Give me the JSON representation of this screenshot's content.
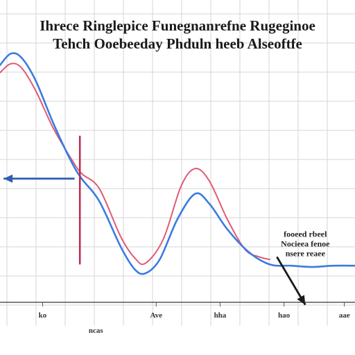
{
  "chart_data": {
    "type": "line",
    "title_lines": [
      "Ihrece Ringlepice Funegnanrefne Rugeginoe",
      "Tehch Ooebeeday Phduln heeb Alseoftfe"
    ],
    "xlim": [
      0,
      10
    ],
    "ylim": [
      0,
      10
    ],
    "grid": true,
    "legend": "none",
    "x_tick_labels": [
      {
        "x": 1.2,
        "label": "ko"
      },
      {
        "x": 4.4,
        "label": "Ave"
      },
      {
        "x": 6.2,
        "label": "hha"
      },
      {
        "x": 8.0,
        "label": "hao"
      },
      {
        "x": 9.7,
        "label": "aae"
      }
    ],
    "x_sublabel": {
      "x": 2.7,
      "label": "ncas"
    },
    "series": [
      {
        "color": "#3a7be0",
        "x": [
          0,
          0.3,
          0.6,
          1.0,
          1.5,
          2.0,
          2.3,
          2.8,
          3.4,
          3.8,
          4.1,
          4.5,
          5.0,
          5.5,
          5.9,
          6.4,
          7.0,
          7.6,
          8.2,
          8.8,
          9.4,
          10.0
        ],
        "y": [
          9.4,
          9.85,
          9.7,
          8.8,
          7.1,
          5.6,
          4.9,
          4.0,
          2.2,
          1.3,
          1.15,
          1.7,
          3.3,
          4.3,
          3.9,
          2.9,
          2.0,
          1.5,
          1.45,
          1.4,
          1.45,
          1.45
        ]
      },
      {
        "color": "#e05a74",
        "x": [
          0,
          0.3,
          0.6,
          1.0,
          1.5,
          2.0,
          2.3,
          2.8,
          3.4,
          3.8,
          4.1,
          4.6,
          5.1,
          5.5,
          5.9,
          6.4,
          6.9,
          7.3,
          7.6
        ],
        "y": [
          9.1,
          9.45,
          9.3,
          8.4,
          6.9,
          5.7,
          5.1,
          4.5,
          2.6,
          1.75,
          1.55,
          2.5,
          4.6,
          5.3,
          4.8,
          3.3,
          2.1,
          1.8,
          1.7
        ]
      }
    ],
    "vertical_marker": {
      "x": 2.25,
      "y_from": 1.5,
      "y_to": 6.6,
      "color": "#c0284a"
    },
    "arrows": [
      {
        "from": [
          2.1,
          4.9
        ],
        "to": [
          0.1,
          4.9
        ],
        "color": "#2e5fb0"
      },
      {
        "from": [
          7.8,
          1.8
        ],
        "to": [
          8.6,
          -0.1
        ],
        "color": "#1a1a1a"
      }
    ],
    "annotation": {
      "lines": [
        "fooeed rbeel",
        "Nocieea fenoe",
        "nsere reaee"
      ],
      "x": 8.6,
      "y": 2.6
    }
  },
  "colors": {
    "background": "#ffffff",
    "grid": "#d6d6d6",
    "axis": "#555555"
  }
}
